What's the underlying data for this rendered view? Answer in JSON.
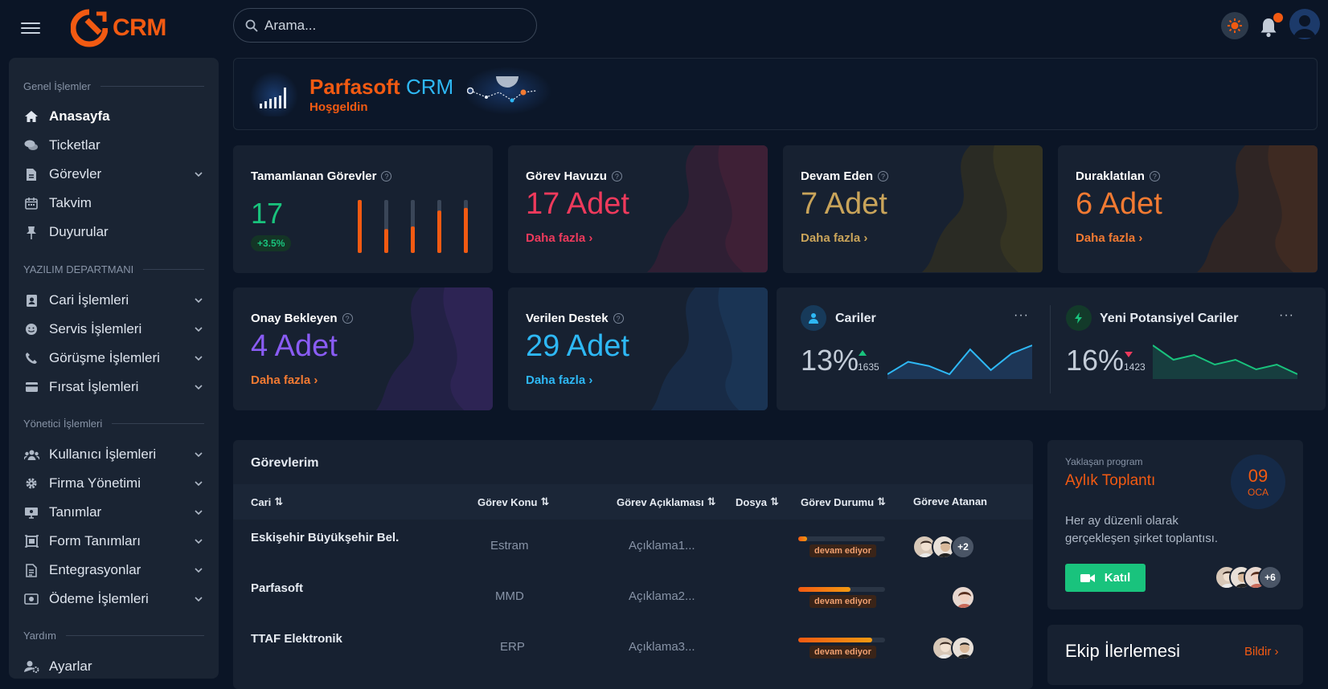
{
  "header": {
    "logo_text": "CRM",
    "search_placeholder": "Arama..."
  },
  "sidebar": {
    "sections": [
      {
        "title": "Genel İşlemler"
      },
      {
        "title": "YAZILIM DEPARTMANI"
      },
      {
        "title": "Yönetici İşlemleri"
      },
      {
        "title": "Yardım"
      }
    ],
    "items": [
      {
        "label": "Anasayfa",
        "icon": "home-icon",
        "active": true
      },
      {
        "label": "Ticketlar",
        "icon": "chat-icon"
      },
      {
        "label": "Görevler",
        "icon": "file-icon",
        "expandable": true
      },
      {
        "label": "Takvim",
        "icon": "calendar-icon"
      },
      {
        "label": "Duyurular",
        "icon": "pin-icon"
      },
      {
        "label": "Cari İşlemleri",
        "icon": "contact-icon",
        "expandable": true
      },
      {
        "label": "Servis İşlemleri",
        "icon": "smile-icon",
        "expandable": true
      },
      {
        "label": "Görüşme İşlemleri",
        "icon": "phone-icon",
        "expandable": true
      },
      {
        "label": "Fırsat İşlemleri",
        "icon": "card-icon",
        "expandable": true
      },
      {
        "label": "Kullanıcı İşlemleri",
        "icon": "users-icon",
        "expandable": true
      },
      {
        "label": "Firma Yönetimi",
        "icon": "gear-icon",
        "expandable": true
      },
      {
        "label": "Tanımlar",
        "icon": "settings-screen-icon",
        "expandable": true
      },
      {
        "label": "Form Tanımları",
        "icon": "form-icon",
        "expandable": true
      },
      {
        "label": "Entegrasyonlar",
        "icon": "doc-icon",
        "expandable": true
      },
      {
        "label": "Ödeme İşlemleri",
        "icon": "money-icon",
        "expandable": true
      },
      {
        "label": "Ayarlar",
        "icon": "user-cog-icon"
      }
    ]
  },
  "welcome": {
    "brand_1": "Parfasoft",
    "brand_2": "CRM",
    "subtitle": "Hoşgeldin"
  },
  "cards": {
    "completed": {
      "title": "Tamamlanan Görevler",
      "value": "17",
      "delta": "+3.5%",
      "bars": [
        1.0,
        0.45,
        0.5,
        0.8,
        0.85
      ]
    },
    "pool": {
      "title": "Görev Havuzu",
      "value": "17 Adet",
      "more": "Daha fazla"
    },
    "ongoing": {
      "title": "Devam Eden",
      "value": "7 Adet",
      "more": "Daha fazla"
    },
    "paused": {
      "title": "Duraklatılan",
      "value": "6 Adet",
      "more": "Daha fazla"
    },
    "pending": {
      "title": "Onay Bekleyen",
      "value": "4 Adet",
      "more": "Daha fazla"
    },
    "support": {
      "title": "Verilen Destek",
      "value": "29 Adet",
      "more": "Daha fazla"
    }
  },
  "stats": {
    "cariler": {
      "title": "Cariler",
      "percent": "13%",
      "count": "1635",
      "trend": "up",
      "values": [
        3,
        6,
        5,
        3,
        9,
        4,
        8,
        10
      ]
    },
    "potential": {
      "title": "Yeni Potansiyel Cariler",
      "percent": "16%",
      "count": "1423",
      "trend": "down",
      "values": [
        10,
        7,
        8,
        6,
        7,
        5,
        6,
        4
      ]
    }
  },
  "tasks": {
    "title": "Görevlerim",
    "columns": [
      "Cari",
      "Görev Konu",
      "Görev Açıklaması",
      "Dosya",
      "Görev Durumu",
      "Göreve Atanan"
    ],
    "rows": [
      {
        "cari": "Eskişehir Büyükşehir Bel.",
        "konu": "Estram",
        "aciklama": "Açıklama1...",
        "status": "devam ediyor",
        "progress": 0.1,
        "extra": "+2"
      },
      {
        "cari": "Parfasoft",
        "konu": "MMD",
        "aciklama": "Açıklama2...",
        "status": "devam ediyor",
        "progress": 0.6,
        "extra": ""
      },
      {
        "cari": "TTAF Elektronik",
        "konu": "ERP",
        "aciklama": "Açıklama3...",
        "status": "devam ediyor",
        "progress": 0.85,
        "extra": ""
      }
    ]
  },
  "program": {
    "label": "Yaklaşan program",
    "title": "Aylık Toplantı",
    "day": "09",
    "month": "OCA",
    "desc": "Her ay düzenli olarak gerçekleşen şirket toplantısı.",
    "join": "Katıl",
    "extra": "+6"
  },
  "team": {
    "title": "Ekip İlerlemesi",
    "action": "Bildir"
  },
  "colors": {
    "accent": "#f25a12",
    "pool": "#ee3a5c",
    "ongoing": "#c9a45a",
    "paused": "#f27a32",
    "pending": "#8a5cf5",
    "support": "#2eb8f5",
    "green": "#19c37d"
  }
}
